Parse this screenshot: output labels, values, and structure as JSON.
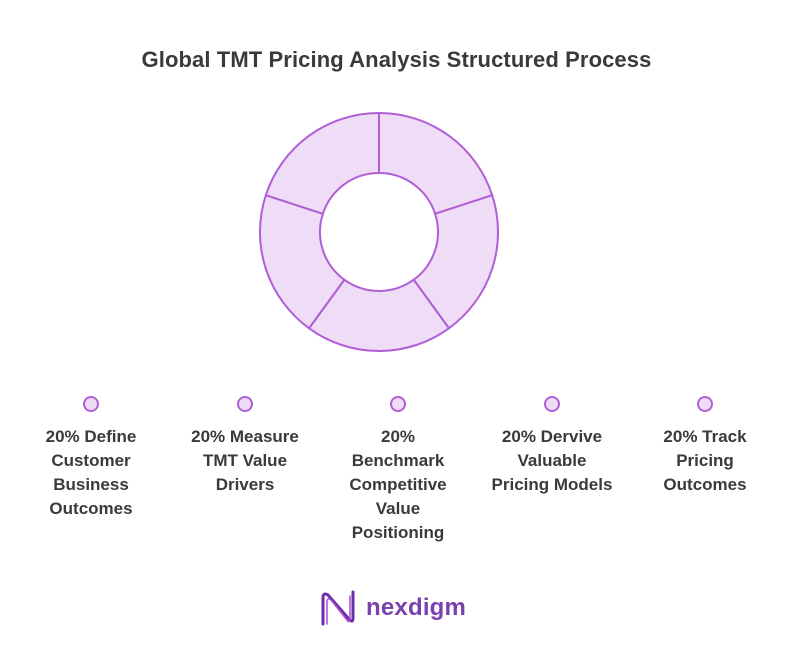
{
  "chart_data": {
    "type": "pie",
    "title": "Global TMT Pricing Analysis Structured Process",
    "slices": [
      {
        "label": "20% Define\nCustomer\nBusiness\nOutcomes",
        "value": 20
      },
      {
        "label": "20% Measure\nTMT Value\nDrivers",
        "value": 20
      },
      {
        "label": "20%\nBenchmark\nCompetitive\nValue\nPositioning",
        "value": 20
      },
      {
        "label": "20% Dervive\nValuable\nPricing Models",
        "value": 20
      },
      {
        "label": "20% Track\nPricing\nOutcomes",
        "value": 20
      }
    ],
    "legend_position": "bottom"
  },
  "colors": {
    "slice_fill": "#efdcf6",
    "slice_stroke": "#b05fd6",
    "title_text": "#3a3a3a",
    "brand": "#7b3fb0"
  },
  "brand": {
    "name": "nexdigm",
    "logo_icon": "nexdigm-n-logo-icon"
  }
}
